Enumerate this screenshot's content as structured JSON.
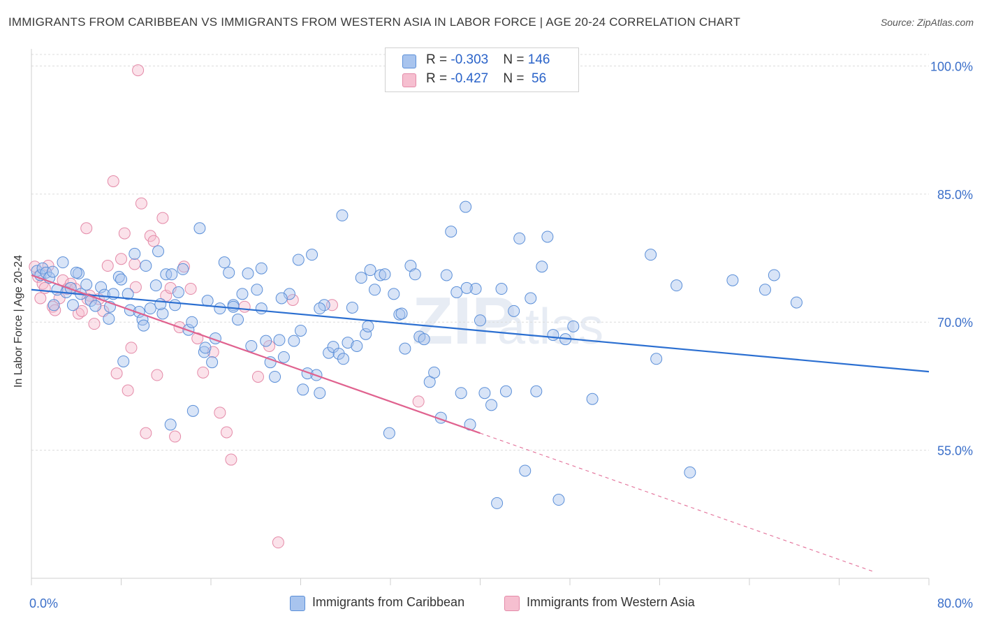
{
  "title": "IMMIGRANTS FROM CARIBBEAN VS IMMIGRANTS FROM WESTERN ASIA IN LABOR FORCE | AGE 20-24 CORRELATION CHART",
  "source": "Source: ZipAtlas.com",
  "watermark": "ZIPatlas",
  "legend": {
    "row1": {
      "r_label": "R = ",
      "r_value": "-0.303",
      "n_label": "N = ",
      "n_value": "146"
    },
    "row2": {
      "r_label": "R = ",
      "r_value": "-0.427",
      "n_label": "N = ",
      "n_value": " 56"
    }
  },
  "chart_data": {
    "type": "scatter",
    "title": "IMMIGRANTS FROM CARIBBEAN VS IMMIGRANTS FROM WESTERN ASIA IN LABOR FORCE | AGE 20-24 CORRELATION CHART",
    "xlabel": "",
    "ylabel": "In Labor Force | Age 20-24",
    "xlim": [
      0,
      80
    ],
    "ylim": [
      40,
      102
    ],
    "x_tick_labels": [
      "0.0%",
      "80.0%"
    ],
    "y_tick_labels": [
      "100.0%",
      "85.0%",
      "70.0%",
      "55.0%"
    ],
    "y_ticks": [
      100,
      85,
      70,
      55
    ],
    "grid": true,
    "legend_placement": "top-center",
    "colors": {
      "caribbean_fill": "#a8c4ee",
      "caribbean_stroke": "#5b8fd8",
      "caribbean_line": "#2b6fd1",
      "wasia_fill": "#f6bfd0",
      "wasia_stroke": "#e48aa8",
      "wasia_line": "#e0628f"
    },
    "series": [
      {
        "name": "Immigrants from Caribbean",
        "R": -0.303,
        "N": 146,
        "trend": {
          "x": [
            0,
            80
          ],
          "y": [
            73.8,
            64.2
          ]
        },
        "points": [
          [
            0.5,
            76.0
          ],
          [
            0.8,
            75.5
          ],
          [
            1.0,
            76.3
          ],
          [
            1.3,
            75.8
          ],
          [
            1.6,
            75.2
          ],
          [
            1.9,
            75.9
          ],
          [
            2.3,
            73.8
          ],
          [
            2.8,
            77.0
          ],
          [
            3.1,
            73.5
          ],
          [
            3.5,
            74.0
          ],
          [
            3.7,
            72.0
          ],
          [
            4.2,
            75.7
          ],
          [
            4.4,
            73.3
          ],
          [
            4.9,
            74.4
          ],
          [
            5.3,
            72.5
          ],
          [
            5.7,
            71.9
          ],
          [
            6.2,
            74.1
          ],
          [
            6.5,
            73.2
          ],
          [
            7.0,
            71.8
          ],
          [
            7.3,
            73.3
          ],
          [
            7.8,
            75.3
          ],
          [
            8.2,
            65.4
          ],
          [
            8.6,
            73.3
          ],
          [
            8.8,
            71.4
          ],
          [
            9.2,
            78.0
          ],
          [
            9.6,
            71.2
          ],
          [
            9.9,
            70.3
          ],
          [
            10.2,
            76.6
          ],
          [
            10.6,
            71.6
          ],
          [
            11.1,
            74.3
          ],
          [
            11.3,
            78.3
          ],
          [
            11.7,
            71.0
          ],
          [
            12.0,
            75.6
          ],
          [
            12.4,
            58.0
          ],
          [
            12.8,
            72.0
          ],
          [
            13.1,
            73.5
          ],
          [
            13.5,
            76.2
          ],
          [
            14.0,
            69.1
          ],
          [
            14.4,
            59.6
          ],
          [
            15.0,
            81.0
          ],
          [
            15.4,
            66.5
          ],
          [
            15.7,
            72.5
          ],
          [
            16.1,
            65.3
          ],
          [
            16.4,
            68.1
          ],
          [
            16.8,
            71.6
          ],
          [
            17.2,
            77.0
          ],
          [
            17.6,
            75.8
          ],
          [
            18.0,
            72.0
          ],
          [
            18.4,
            70.3
          ],
          [
            18.8,
            73.3
          ],
          [
            19.3,
            75.7
          ],
          [
            19.6,
            67.2
          ],
          [
            20.1,
            73.8
          ],
          [
            20.5,
            71.6
          ],
          [
            20.9,
            67.8
          ],
          [
            21.3,
            65.3
          ],
          [
            21.7,
            63.6
          ],
          [
            22.1,
            67.9
          ],
          [
            22.5,
            65.9
          ],
          [
            23.0,
            73.3
          ],
          [
            23.4,
            67.8
          ],
          [
            23.8,
            77.3
          ],
          [
            24.2,
            62.1
          ],
          [
            24.6,
            64.0
          ],
          [
            25.0,
            77.9
          ],
          [
            25.4,
            63.8
          ],
          [
            25.7,
            61.7
          ],
          [
            26.1,
            72.0
          ],
          [
            26.5,
            66.4
          ],
          [
            26.9,
            67.1
          ],
          [
            27.4,
            66.3
          ],
          [
            27.8,
            65.7
          ],
          [
            28.2,
            67.6
          ],
          [
            28.6,
            71.7
          ],
          [
            29.0,
            67.2
          ],
          [
            29.4,
            75.2
          ],
          [
            29.8,
            68.6
          ],
          [
            30.2,
            76.1
          ],
          [
            30.6,
            73.8
          ],
          [
            31.1,
            75.5
          ],
          [
            31.5,
            75.6
          ],
          [
            31.9,
            57.0
          ],
          [
            32.3,
            73.3
          ],
          [
            32.8,
            70.9
          ],
          [
            33.3,
            66.9
          ],
          [
            33.8,
            76.6
          ],
          [
            34.2,
            75.6
          ],
          [
            34.6,
            68.3
          ],
          [
            35.0,
            68.0
          ],
          [
            35.5,
            63.0
          ],
          [
            35.9,
            64.1
          ],
          [
            36.5,
            58.8
          ],
          [
            37.0,
            75.5
          ],
          [
            37.4,
            80.6
          ],
          [
            37.9,
            73.5
          ],
          [
            38.3,
            61.7
          ],
          [
            38.7,
            83.5
          ],
          [
            39.1,
            58.0
          ],
          [
            39.6,
            73.9
          ],
          [
            40.0,
            70.2
          ],
          [
            40.4,
            61.7
          ],
          [
            41.0,
            60.3
          ],
          [
            41.5,
            48.8
          ],
          [
            41.9,
            73.9
          ],
          [
            42.3,
            61.9
          ],
          [
            43.0,
            71.3
          ],
          [
            43.5,
            79.8
          ],
          [
            44.0,
            52.6
          ],
          [
            44.5,
            72.8
          ],
          [
            45.0,
            61.9
          ],
          [
            45.5,
            76.5
          ],
          [
            46.0,
            80.0
          ],
          [
            46.5,
            68.5
          ],
          [
            47.0,
            49.2
          ],
          [
            47.6,
            68.0
          ],
          [
            48.3,
            69.5
          ],
          [
            50.0,
            61.0
          ],
          [
            55.2,
            77.9
          ],
          [
            55.7,
            65.7
          ],
          [
            57.5,
            74.3
          ],
          [
            58.7,
            52.4
          ],
          [
            62.5,
            74.9
          ],
          [
            65.4,
            73.8
          ],
          [
            66.2,
            75.5
          ],
          [
            68.2,
            72.3
          ],
          [
            12.5,
            75.6
          ],
          [
            18.0,
            71.8
          ],
          [
            27.7,
            82.5
          ],
          [
            22.3,
            72.8
          ],
          [
            11.5,
            72.1
          ],
          [
            6.9,
            70.4
          ],
          [
            2.0,
            72.0
          ],
          [
            4.0,
            75.8
          ],
          [
            8.0,
            75.0
          ],
          [
            14.3,
            70.0
          ],
          [
            20.5,
            76.3
          ],
          [
            25.7,
            71.6
          ],
          [
            33.0,
            71.0
          ],
          [
            38.8,
            74.0
          ],
          [
            15.5,
            67.0
          ],
          [
            10.0,
            69.6
          ],
          [
            24.0,
            69.0
          ],
          [
            30.0,
            69.5
          ]
        ]
      },
      {
        "name": "Immigrants from Western Asia",
        "R": -0.427,
        "N": 56,
        "trend": {
          "x": [
            0,
            40
          ],
          "y": [
            75.5,
            57.0
          ]
        },
        "trend_dashed": {
          "x": [
            40,
            80
          ],
          "y": [
            57.0,
            38.5
          ]
        },
        "points": [
          [
            0.3,
            76.5
          ],
          [
            0.6,
            75.3
          ],
          [
            0.8,
            72.8
          ],
          [
            1.0,
            74.5
          ],
          [
            1.2,
            74.0
          ],
          [
            1.5,
            76.6
          ],
          [
            1.9,
            71.8
          ],
          [
            2.1,
            71.4
          ],
          [
            2.5,
            72.8
          ],
          [
            2.8,
            74.9
          ],
          [
            3.2,
            73.9
          ],
          [
            3.5,
            74.5
          ],
          [
            3.9,
            73.9
          ],
          [
            4.2,
            71.0
          ],
          [
            4.5,
            71.3
          ],
          [
            4.9,
            81.0
          ],
          [
            5.2,
            73.1
          ],
          [
            5.6,
            69.8
          ],
          [
            6.0,
            72.7
          ],
          [
            6.4,
            71.3
          ],
          [
            6.8,
            76.6
          ],
          [
            7.3,
            86.5
          ],
          [
            7.6,
            64.0
          ],
          [
            8.0,
            77.4
          ],
          [
            8.3,
            80.4
          ],
          [
            8.6,
            62.0
          ],
          [
            8.9,
            67.0
          ],
          [
            9.2,
            76.8
          ],
          [
            9.5,
            99.5
          ],
          [
            9.8,
            83.9
          ],
          [
            10.2,
            57.0
          ],
          [
            10.6,
            80.1
          ],
          [
            10.9,
            79.5
          ],
          [
            11.2,
            63.8
          ],
          [
            11.7,
            82.2
          ],
          [
            12.0,
            73.1
          ],
          [
            12.4,
            74.0
          ],
          [
            12.8,
            56.6
          ],
          [
            13.2,
            69.4
          ],
          [
            13.6,
            76.5
          ],
          [
            14.2,
            73.9
          ],
          [
            14.8,
            68.1
          ],
          [
            15.3,
            64.1
          ],
          [
            16.2,
            66.5
          ],
          [
            16.8,
            59.4
          ],
          [
            17.4,
            57.1
          ],
          [
            17.8,
            53.9
          ],
          [
            19.0,
            71.8
          ],
          [
            20.2,
            63.6
          ],
          [
            21.2,
            67.2
          ],
          [
            22.0,
            44.2
          ],
          [
            23.3,
            72.6
          ],
          [
            26.8,
            72.0
          ],
          [
            34.5,
            60.7
          ],
          [
            5.0,
            72.7
          ],
          [
            9.3,
            74.1
          ]
        ]
      }
    ]
  },
  "bottom_legend": {
    "caribbean": "Immigrants from Caribbean",
    "wasia": "Immigrants from Western Asia"
  }
}
